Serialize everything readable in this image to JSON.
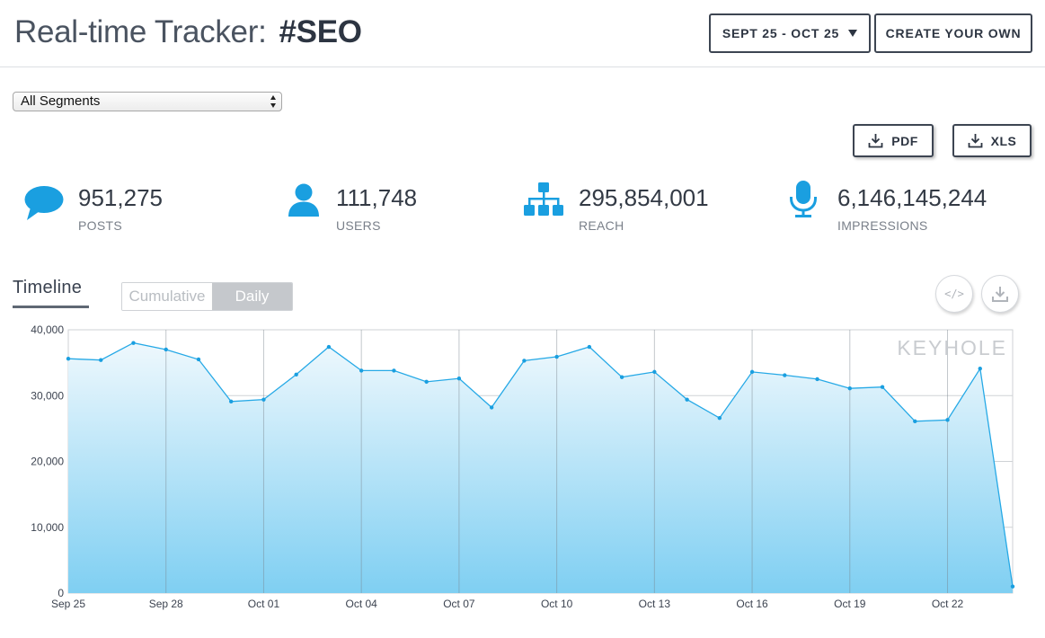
{
  "header": {
    "title_prefix": "Real-time Tracker:",
    "hashtag": "#SEO",
    "date_range_label": "SEPT 25 - OCT 25",
    "create_label": "CREATE YOUR OWN"
  },
  "segments": {
    "selected": "All Segments"
  },
  "downloads": {
    "pdf_label": "PDF",
    "xls_label": "XLS"
  },
  "stats": [
    {
      "icon": "speech-bubble-icon",
      "value": "951,275",
      "label": "POSTS"
    },
    {
      "icon": "user-icon",
      "value": "111,748",
      "label": "USERS"
    },
    {
      "icon": "hierarchy-icon",
      "value": "295,854,001",
      "label": "REACH"
    },
    {
      "icon": "microphone-icon",
      "value": "6,146,145,244",
      "label": "IMPRESSIONS"
    }
  ],
  "timeline": {
    "title": "Timeline",
    "toggle": {
      "cumulative": "Cumulative",
      "daily": "Daily",
      "active": "Daily"
    },
    "embed_label": "</>",
    "watermark": "KEYHOLE"
  },
  "colors": {
    "accent": "#1a9fe0",
    "line": "#26a9e6",
    "text": "#333a45"
  },
  "chart_data": {
    "type": "area",
    "title": "",
    "xlabel": "",
    "ylabel": "",
    "ylim": [
      0,
      40000
    ],
    "yticks": [
      0,
      10000,
      20000,
      30000,
      40000
    ],
    "ytick_labels": [
      "0",
      "10,000",
      "20,000",
      "30,000",
      "40,000"
    ],
    "xtick_labels": [
      "Sep 25",
      "Sep 28",
      "Oct 01",
      "Oct 04",
      "Oct 07",
      "Oct 10",
      "Oct 13",
      "Oct 16",
      "Oct 19",
      "Oct 22"
    ],
    "x": [
      "Sep 25",
      "Sep 26",
      "Sep 27",
      "Sep 28",
      "Sep 29",
      "Sep 30",
      "Oct 01",
      "Oct 02",
      "Oct 03",
      "Oct 04",
      "Oct 05",
      "Oct 06",
      "Oct 07",
      "Oct 08",
      "Oct 09",
      "Oct 10",
      "Oct 11",
      "Oct 12",
      "Oct 13",
      "Oct 14",
      "Oct 15",
      "Oct 16",
      "Oct 17",
      "Oct 18",
      "Oct 19",
      "Oct 20",
      "Oct 21",
      "Oct 22",
      "Oct 23",
      "Oct 24"
    ],
    "series": [
      {
        "values": [
          35600,
          35400,
          38000,
          37000,
          35500,
          29100,
          29400,
          33200,
          37400,
          33800,
          33800,
          32100,
          32600,
          28200,
          35300,
          35900,
          37400,
          32800,
          33600,
          29400,
          26600,
          33600,
          33100,
          32500,
          31100,
          31300,
          26100,
          26300,
          34100,
          1000
        ]
      }
    ],
    "grid": true,
    "legend": "none"
  }
}
